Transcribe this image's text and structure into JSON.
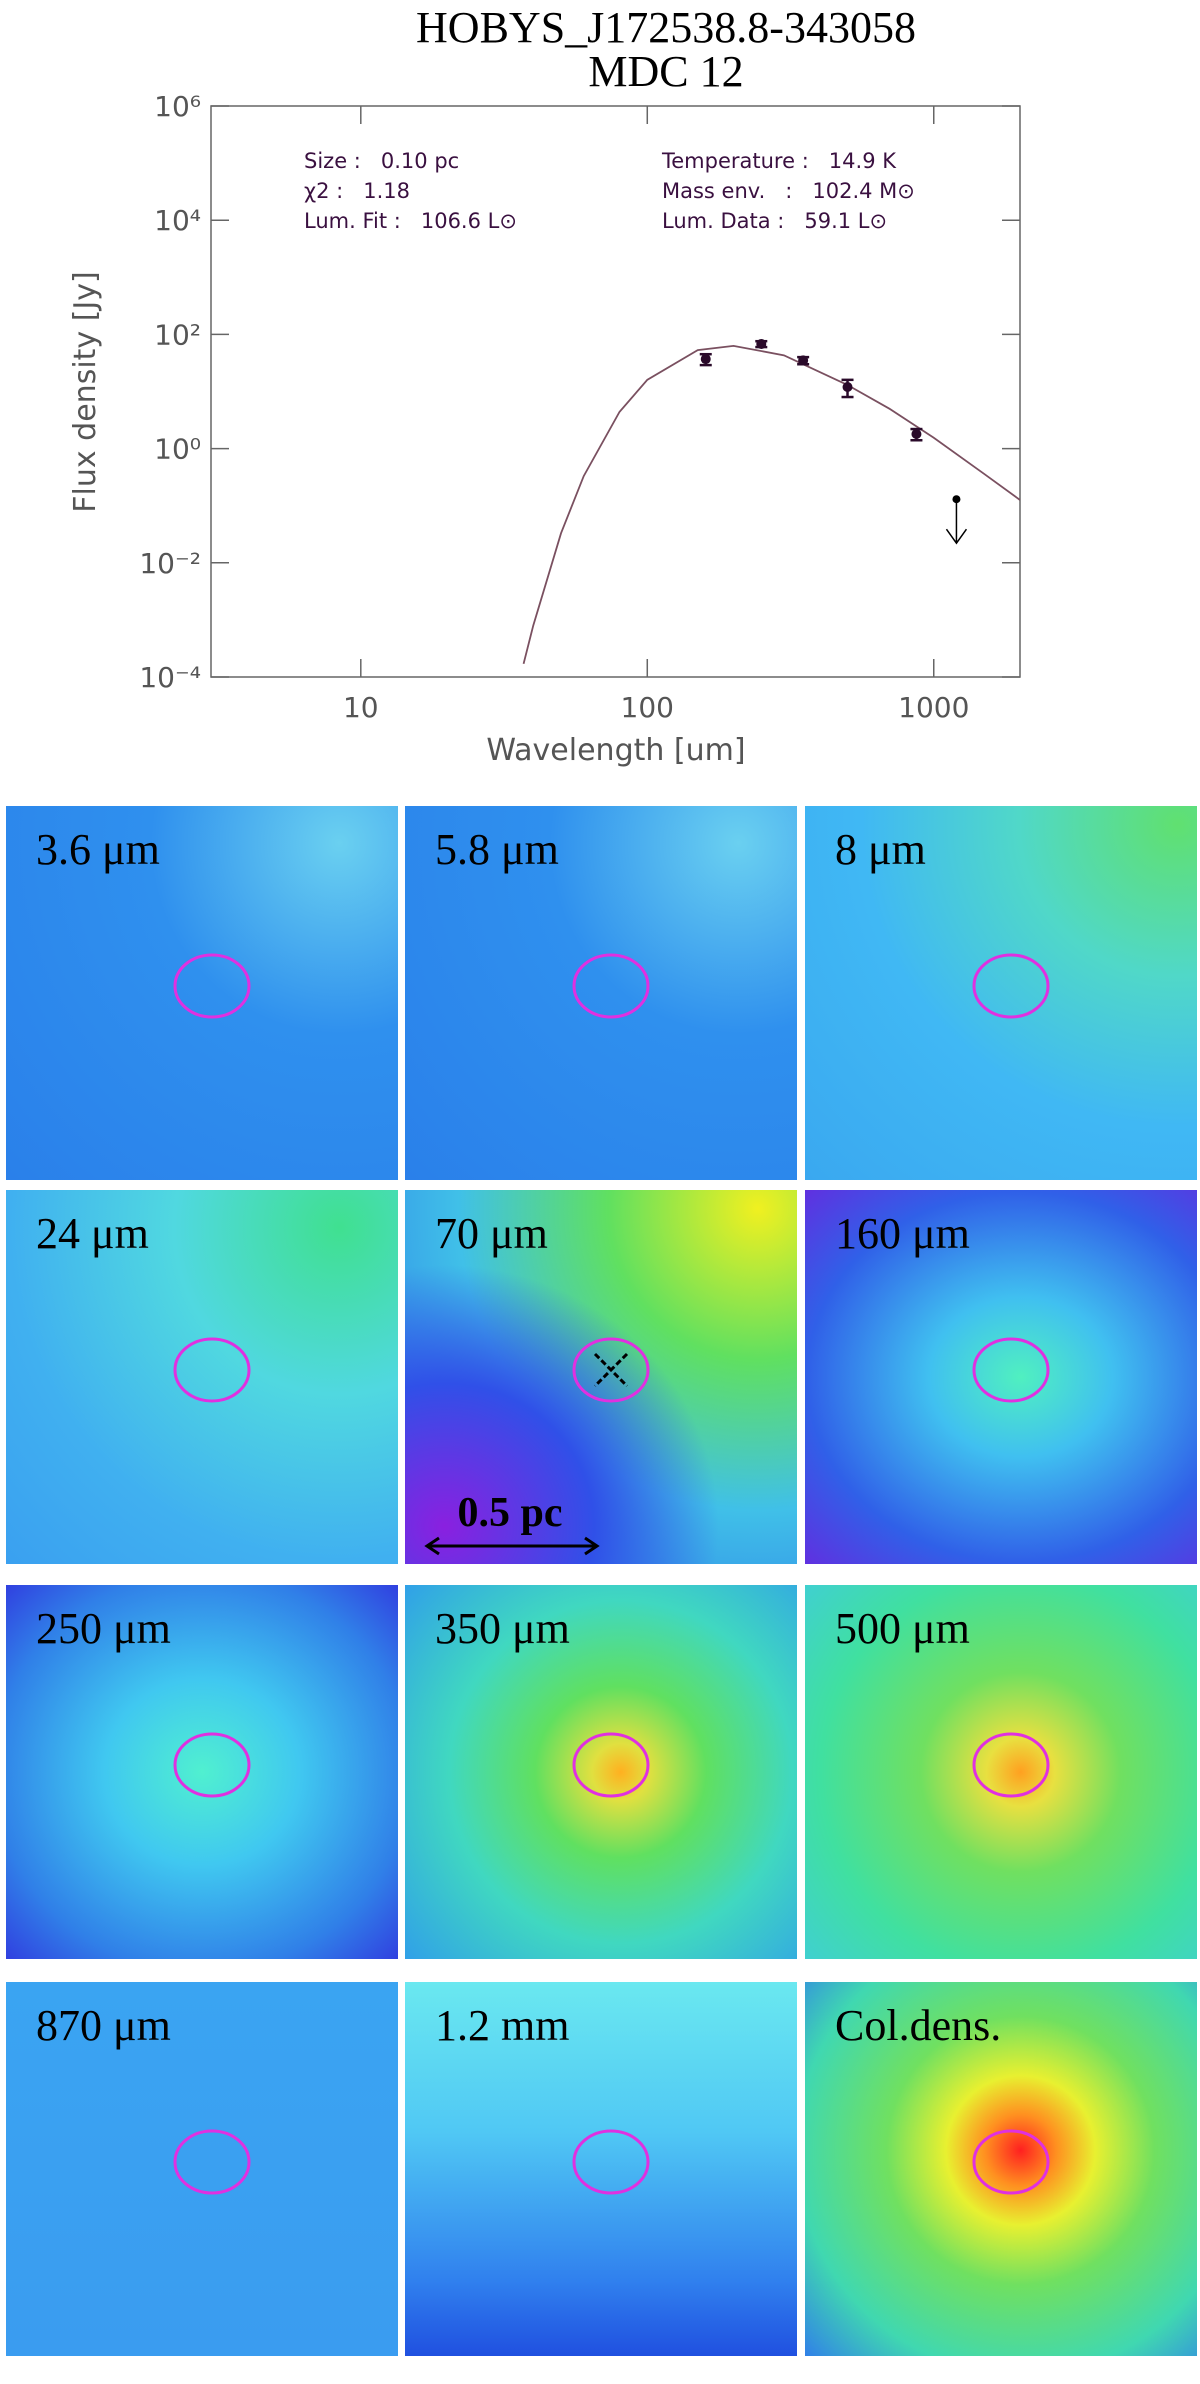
{
  "chart_data": {
    "type": "scatter",
    "title": [
      "HOBYS_J172538.8-343058",
      "MDC 12"
    ],
    "xlabel": "Wavelength [um]",
    "ylabel": "Flux density [Jy]",
    "xscale": "log",
    "yscale": "log",
    "xlim": [
      3,
      2000
    ],
    "xticks": [
      10,
      100,
      1000
    ],
    "ylim": [
      0.0001,
      1000000
    ],
    "yticks": [
      {
        "value": 0.0001,
        "label": "10⁻⁴"
      },
      {
        "value": 0.01,
        "label": "10⁻²"
      },
      {
        "value": 1,
        "label": "10⁰"
      },
      {
        "value": 100,
        "label": "10²"
      },
      {
        "value": 10000,
        "label": "10⁴"
      },
      {
        "value": 1000000,
        "label": "10⁶"
      }
    ],
    "info": [
      "Size :   0.10 pc",
      "χ2 :   1.18",
      "Lum. Fit :   106.6 L⊙",
      "Temperature :   14.9 K",
      "Mass env.   :   102.4 M⊙",
      "Lum. Data :   59.1 L⊙"
    ],
    "fit": {
      "color": "#7a5060",
      "x": [
        37,
        40,
        50,
        60,
        80,
        100,
        150,
        200,
        300,
        500,
        700,
        1000,
        1500,
        2000
      ],
      "values": [
        0.00017,
        0.0008,
        0.033,
        0.33,
        4.4,
        16,
        53,
        63,
        43,
        13,
        5,
        1.55,
        0.36,
        0.126
      ]
    },
    "points": {
      "color": "#2a0a2a",
      "x": [
        160,
        250,
        350,
        500,
        870
      ],
      "values": [
        37,
        68,
        35,
        12,
        1.8
      ],
      "errors": [
        8,
        8,
        5,
        4,
        0.4
      ]
    },
    "upper_limit": {
      "color": "#000000",
      "x": 1200,
      "value": 0.13
    }
  },
  "panels": [
    {
      "label": "3.6 μm"
    },
    {
      "label": "5.8 μm"
    },
    {
      "label": "8 μm"
    },
    {
      "label": "24 μm"
    },
    {
      "label": "70 μm"
    },
    {
      "label": "160 μm"
    },
    {
      "label": "250 μm"
    },
    {
      "label": "350 μm"
    },
    {
      "label": "500 μm"
    },
    {
      "label": "870 μm"
    },
    {
      "label": "1.2 mm"
    },
    {
      "label": "Col.dens."
    }
  ],
  "scale_bar": "0.5 pc"
}
